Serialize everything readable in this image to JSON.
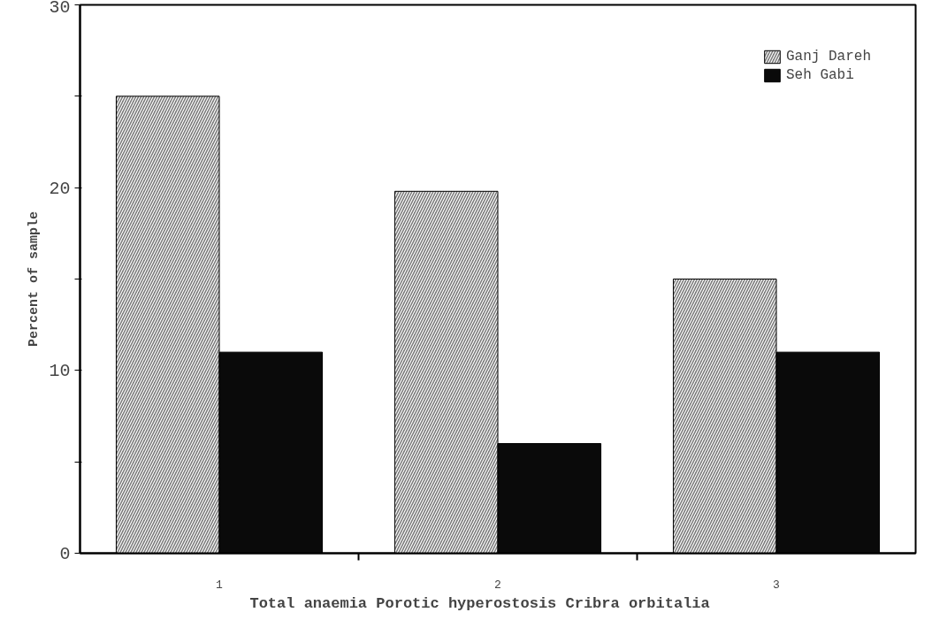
{
  "chart_data": {
    "type": "bar",
    "xlabel": "Total anaemia   Porotic hyperostosis   Cribra orbitalia",
    "ylabel": "Percent of sample",
    "categories": [
      "1",
      "2",
      "3"
    ],
    "series": [
      {
        "name": "Ganj Dareh",
        "color": "#7a7a7a",
        "values": [
          25,
          19.8,
          15
        ]
      },
      {
        "name": "Seh Gabi",
        "color": "#0a0a0a",
        "values": [
          11,
          6,
          11
        ]
      }
    ],
    "ylim": [
      0,
      30
    ],
    "yticks": [
      0,
      {
        "value": 5,
        "label": null
      },
      10,
      {
        "value": 15,
        "label": null
      },
      20,
      {
        "value": 25,
        "label": null
      },
      30
    ],
    "grid": false,
    "legend": "top right"
  }
}
